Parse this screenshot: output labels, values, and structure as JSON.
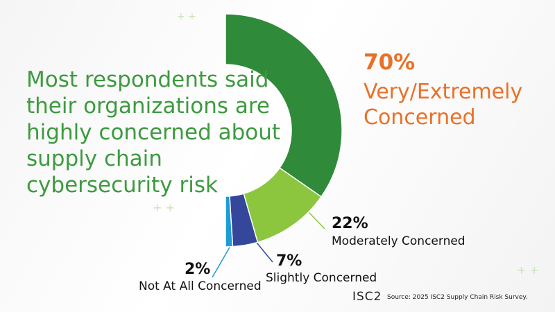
{
  "chart_data": {
    "type": "pie",
    "title": "Most respondents said their organizations are highly concerned about supply chain cybersecurity risk",
    "categories": [
      "Very/Extremely Concerned",
      "Moderately Concerned",
      "Slightly Concerned",
      "Not At All Concerned"
    ],
    "values": [
      70,
      22,
      7,
      2
    ],
    "value_labels": [
      "70%",
      "22%",
      "7%",
      "2%"
    ],
    "colors": [
      "#2f8a3a",
      "#8cc63f",
      "#34479a",
      "#1e9ad6"
    ],
    "source": "Source: 2025 ISC2 Supply Chain Risk Survey.",
    "logo": "ISC2"
  }
}
